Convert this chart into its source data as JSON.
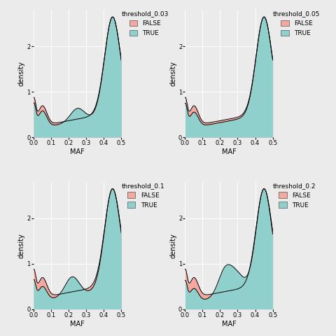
{
  "color_false": "#F4A8A0",
  "color_true": "#90D0CC",
  "bg_color": "#EBEBEB",
  "grid_color": "#ffffff",
  "xlabel": "MAF",
  "ylabel": "density",
  "xlim": [
    0.0,
    0.5
  ],
  "ylim": [
    0.0,
    2.8
  ],
  "yticks": [
    0,
    1,
    2
  ],
  "xticks": [
    0.0,
    0.1,
    0.2,
    0.3,
    0.4,
    0.5
  ],
  "panels": [
    {
      "title": "threshold_0.03",
      "row": 0,
      "col": 0
    },
    {
      "title": "threshold_0.05",
      "row": 0,
      "col": 1
    },
    {
      "title": "threshold_0.1",
      "row": 1,
      "col": 0
    },
    {
      "title": "threshold_0.2",
      "row": 1,
      "col": 1
    }
  ]
}
